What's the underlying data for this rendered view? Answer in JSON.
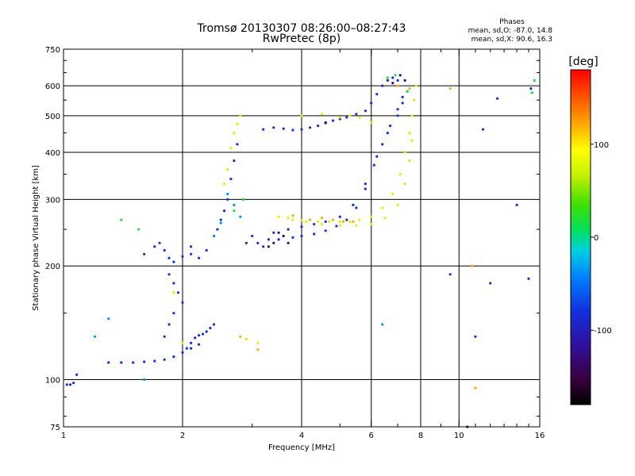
{
  "chart_data": {
    "type": "scatter",
    "title": "Tromsø 20130307 08:26:00–08:27:43",
    "subtitle": "RwPretec (8p)",
    "xlabel": "Frequency [MHz]",
    "ylabel": "Stationary phase Virtual Height [km]",
    "x_scale": "log",
    "y_scale": "log",
    "xlim": [
      1,
      16
    ],
    "ylim": [
      75,
      750
    ],
    "x_ticks": [
      1,
      2,
      4,
      6,
      8,
      10,
      16
    ],
    "y_ticks": [
      75,
      100,
      200,
      300,
      400,
      500,
      600,
      750
    ],
    "grid": true,
    "phases_info": {
      "title": "Phases",
      "line1": "mean, sd,O: -87.0, 14.8",
      "line2": "mean, sd,X:  90.6, 16.3"
    },
    "colorbar": {
      "label": "[deg]",
      "range": [
        -180,
        180
      ],
      "ticks": [
        100,
        0,
        -100
      ]
    },
    "series": [
      {
        "phase_deg": -95,
        "points": [
          [
            1.02,
            97
          ],
          [
            1.04,
            97
          ],
          [
            1.06,
            98
          ],
          [
            1.08,
            103
          ],
          [
            1.3,
            111
          ],
          [
            1.4,
            111
          ],
          [
            1.5,
            111
          ],
          [
            1.6,
            111.5
          ],
          [
            1.7,
            112
          ],
          [
            1.8,
            113
          ],
          [
            1.9,
            115
          ],
          [
            2.0,
            118
          ],
          [
            2.1,
            121
          ],
          [
            2.2,
            124
          ],
          [
            2.0,
            118
          ],
          [
            2.05,
            121
          ],
          [
            2.1,
            125
          ],
          [
            2.15,
            129
          ],
          [
            2.2,
            131
          ],
          [
            2.25,
            132
          ],
          [
            2.3,
            134
          ],
          [
            2.35,
            137
          ],
          [
            2.4,
            140
          ],
          [
            2.1,
            215
          ],
          [
            2.2,
            210
          ],
          [
            2.3,
            220
          ],
          [
            2.4,
            240
          ],
          [
            2.45,
            250
          ],
          [
            2.5,
            265
          ],
          [
            2.55,
            280
          ],
          [
            2.6,
            300
          ],
          [
            2.65,
            340
          ],
          [
            2.7,
            380
          ],
          [
            2.75,
            420
          ],
          [
            2.9,
            230
          ],
          [
            3.0,
            240
          ],
          [
            3.1,
            230
          ],
          [
            3.2,
            225
          ],
          [
            3.3,
            235
          ],
          [
            1.6,
            215
          ],
          [
            1.7,
            225
          ],
          [
            1.75,
            230
          ],
          [
            1.8,
            220
          ],
          [
            1.85,
            210
          ],
          [
            1.9,
            205
          ],
          [
            2.0,
            212
          ],
          [
            2.1,
            225
          ],
          [
            1.85,
            190
          ],
          [
            1.9,
            180
          ],
          [
            1.95,
            170
          ],
          [
            2.0,
            160
          ],
          [
            1.9,
            150
          ],
          [
            1.85,
            140
          ],
          [
            1.8,
            130
          ],
          [
            3.2,
            460
          ],
          [
            3.4,
            465
          ],
          [
            3.6,
            462
          ],
          [
            3.8,
            458
          ],
          [
            4.0,
            460
          ],
          [
            4.2,
            465
          ],
          [
            4.4,
            470
          ],
          [
            4.6,
            478
          ],
          [
            4.8,
            485
          ],
          [
            5.0,
            490
          ],
          [
            5.2,
            495
          ],
          [
            5.5,
            505
          ],
          [
            5.8,
            515
          ],
          [
            6.0,
            540
          ],
          [
            6.2,
            570
          ],
          [
            6.4,
            600
          ],
          [
            6.6,
            620
          ],
          [
            6.8,
            630
          ],
          [
            7.0,
            620
          ],
          [
            3.5,
            235
          ],
          [
            3.8,
            238
          ],
          [
            4.0,
            240
          ],
          [
            4.3,
            243
          ],
          [
            4.6,
            248
          ],
          [
            4.9,
            255
          ],
          [
            5.2,
            265
          ],
          [
            5.5,
            285
          ],
          [
            5.8,
            320
          ],
          [
            6.1,
            370
          ],
          [
            6.4,
            420
          ],
          [
            6.7,
            470
          ],
          [
            7.0,
            520
          ],
          [
            7.2,
            560
          ],
          [
            7.4,
            580
          ],
          [
            3.4,
            245
          ],
          [
            3.7,
            250
          ],
          [
            4.0,
            254
          ],
          [
            4.3,
            258
          ],
          [
            4.6,
            262
          ],
          [
            5.0,
            270
          ],
          [
            5.4,
            290
          ],
          [
            5.8,
            330
          ],
          [
            6.2,
            390
          ],
          [
            6.6,
            450
          ],
          [
            7.0,
            500
          ],
          [
            7.2,
            540
          ],
          [
            11,
            130
          ],
          [
            12,
            180
          ],
          [
            14,
            290
          ],
          [
            15,
            185
          ],
          [
            15.2,
            590
          ],
          [
            12.5,
            555
          ],
          [
            11.5,
            460
          ],
          [
            9.5,
            190
          ]
        ]
      },
      {
        "phase_deg": 80,
        "points": [
          [
            3.5,
            270
          ],
          [
            3.8,
            265
          ],
          [
            4.1,
            262
          ],
          [
            4.4,
            262
          ],
          [
            4.7,
            262
          ],
          [
            5.0,
            262
          ],
          [
            5.3,
            262
          ],
          [
            5.6,
            265
          ],
          [
            6.0,
            270
          ],
          [
            6.4,
            285
          ],
          [
            6.8,
            310
          ],
          [
            7.1,
            350
          ],
          [
            7.3,
            400
          ],
          [
            7.5,
            450
          ],
          [
            7.6,
            500
          ],
          [
            7.7,
            550
          ],
          [
            7.8,
            600
          ],
          [
            3.7,
            268
          ],
          [
            4.0,
            264
          ],
          [
            4.5,
            258
          ],
          [
            5.0,
            256
          ],
          [
            5.5,
            256
          ],
          [
            6.0,
            258
          ],
          [
            6.5,
            268
          ],
          [
            7.0,
            290
          ],
          [
            7.3,
            330
          ],
          [
            7.5,
            380
          ],
          [
            7.6,
            430
          ],
          [
            2.55,
            330
          ],
          [
            2.6,
            360
          ],
          [
            2.65,
            410
          ],
          [
            2.7,
            450
          ],
          [
            2.75,
            475
          ],
          [
            2.8,
            500
          ],
          [
            4.0,
            500
          ],
          [
            4.5,
            505
          ],
          [
            5.0,
            495
          ],
          [
            5.3,
            500
          ],
          [
            5.6,
            495
          ],
          [
            6.0,
            480
          ],
          [
            1.9,
            170
          ],
          [
            2.0,
            125
          ],
          [
            2.9,
            128
          ],
          [
            3.1,
            125
          ]
        ]
      },
      {
        "phase_deg": 130,
        "points": [
          [
            4.2,
            265
          ],
          [
            4.5,
            268
          ],
          [
            4.8,
            265
          ],
          [
            5.1,
            262
          ],
          [
            5.4,
            262
          ],
          [
            3.8,
            272
          ],
          [
            7.5,
            590
          ],
          [
            7.0,
            600
          ],
          [
            9.5,
            590
          ],
          [
            11,
            95
          ],
          [
            10.8,
            200
          ],
          [
            3.1,
            120
          ],
          [
            2.8,
            130
          ]
        ]
      },
      {
        "phase_deg": 20,
        "points": [
          [
            1.4,
            265
          ],
          [
            1.55,
            250
          ],
          [
            2.7,
            280
          ],
          [
            2.85,
            300
          ],
          [
            7.4,
            580
          ],
          [
            15.5,
            620
          ],
          [
            15.3,
            575
          ],
          [
            6.6,
            630
          ],
          [
            6.9,
            640
          ]
        ]
      },
      {
        "phase_deg": -50,
        "points": [
          [
            2.4,
            240
          ],
          [
            2.5,
            260
          ],
          [
            2.6,
            310
          ],
          [
            2.7,
            290
          ],
          [
            2.8,
            270
          ],
          [
            6.4,
            140
          ],
          [
            1.2,
            130
          ],
          [
            1.6,
            100
          ],
          [
            1.3,
            145
          ]
        ]
      },
      {
        "phase_deg": -135,
        "points": [
          [
            3.3,
            225
          ],
          [
            3.4,
            230
          ],
          [
            3.5,
            245
          ],
          [
            3.6,
            240
          ],
          [
            3.7,
            230
          ],
          [
            4.6,
            480
          ],
          [
            6.8,
            610
          ],
          [
            7.1,
            640
          ],
          [
            7.3,
            620
          ],
          [
            10.5,
            75
          ]
        ]
      }
    ]
  }
}
